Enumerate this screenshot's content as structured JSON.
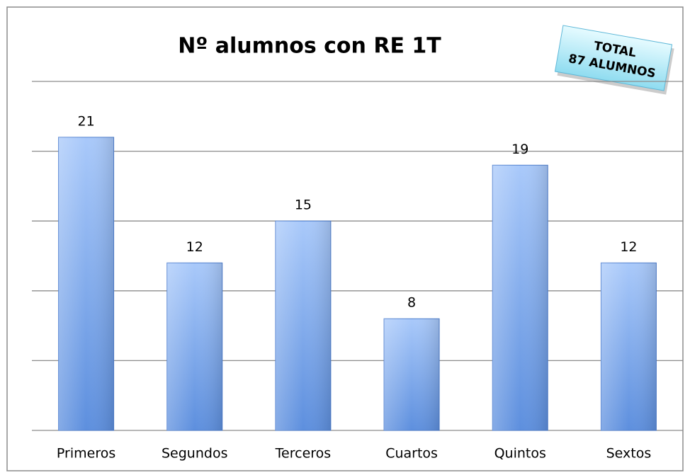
{
  "chart_data": {
    "type": "bar",
    "title": "Nº alumnos con RE 1T",
    "categories": [
      "Primeros",
      "Segundos",
      "Terceros",
      "Cuartos",
      "Quintos",
      "Sextos"
    ],
    "values": [
      21,
      12,
      15,
      8,
      19,
      12
    ],
    "color": "#6f9fe8",
    "ylim": [
      0,
      25
    ],
    "yticks": [
      0,
      5,
      10,
      15,
      20,
      25
    ],
    "grid": true,
    "annotations": [
      "TOTAL",
      "87 ALUMNOS"
    ]
  }
}
